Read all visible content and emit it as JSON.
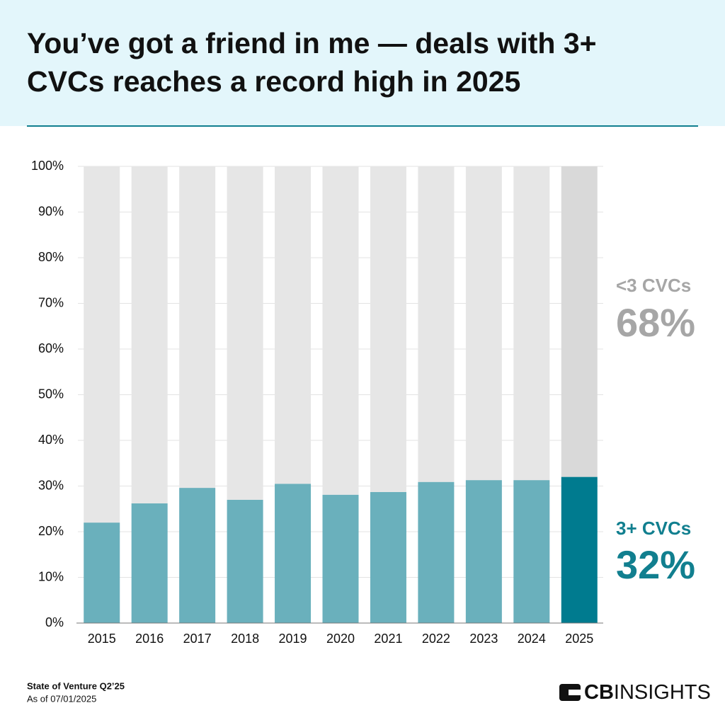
{
  "chart_data": {
    "type": "stacked_bar",
    "title_lines": [
      "You’ve got a friend in me — deals with 3+",
      "CVCs reaches a record high in 2025"
    ],
    "categories": [
      "2015",
      "2016",
      "2017",
      "2018",
      "2019",
      "2020",
      "2021",
      "2022",
      "2023",
      "2024",
      "2025"
    ],
    "series": [
      {
        "name": "3+ CVCs",
        "color": "#117f8f",
        "colors": [
          "#6ab0bc",
          "#6ab0bc",
          "#6ab0bc",
          "#6ab0bc",
          "#6ab0bc",
          "#6ab0bc",
          "#6ab0bc",
          "#6ab0bc",
          "#6ab0bc",
          "#6ab0bc",
          "#007b8f"
        ],
        "values": [
          22,
          26.2,
          29.6,
          27.0,
          30.5,
          28.1,
          28.7,
          30.9,
          31.3,
          31.3,
          32
        ],
        "value_labels": [
          null,
          null,
          null,
          null,
          null,
          null,
          null,
          null,
          null,
          null,
          "32%"
        ]
      },
      {
        "name": "<3 CVCs",
        "color": "#a6a6a6",
        "colors": [
          "#e6e6e6",
          "#e6e6e6",
          "#e6e6e6",
          "#e6e6e6",
          "#e6e6e6",
          "#e6e6e6",
          "#e6e6e6",
          "#e6e6e6",
          "#e6e6e6",
          "#e6e6e6",
          "#d9d9d9"
        ],
        "values": [
          78,
          73.8,
          70.4,
          73.0,
          69.5,
          71.9,
          71.3,
          69.1,
          68.7,
          68.7,
          68
        ],
        "value_labels": [
          null,
          null,
          null,
          null,
          null,
          null,
          null,
          null,
          null,
          null,
          "68%"
        ]
      }
    ],
    "ylim": [
      0,
      100
    ],
    "yticks": [
      {
        "value": 0,
        "label": "0%"
      },
      {
        "value": 10,
        "label": "10%"
      },
      {
        "value": 20,
        "label": "20%"
      },
      {
        "value": 30,
        "label": "30%"
      },
      {
        "value": 40,
        "label": "40%"
      },
      {
        "value": 50,
        "label": "50%"
      },
      {
        "value": 60,
        "label": "60%"
      },
      {
        "value": 70,
        "label": "70%"
      },
      {
        "value": 80,
        "label": "80%"
      },
      {
        "value": 90,
        "label": "90%"
      },
      {
        "value": 100,
        "label": "100%"
      }
    ],
    "grid": true
  },
  "footer": {
    "source": "State of Venture Q2’25",
    "date": "As of 07/01/2025",
    "logo_bold": "CB",
    "logo_text": "INSIGHTS"
  }
}
